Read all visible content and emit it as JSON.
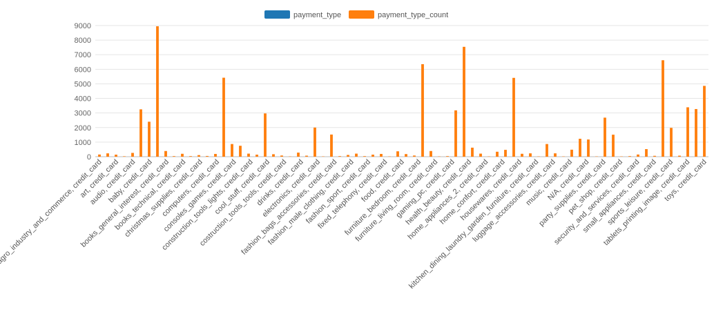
{
  "chart_data": {
    "type": "bar",
    "ylim": [
      0,
      9000
    ],
    "yticks": [
      0,
      1000,
      2000,
      3000,
      4000,
      5000,
      6000,
      7000,
      8000,
      9000
    ],
    "grid": true,
    "legend_placement": "top-center",
    "series": [
      {
        "name": "payment_type",
        "color": "#1f77b4"
      },
      {
        "name": "payment_type_count",
        "color": "#ff7f0e"
      }
    ],
    "tick_labels": [
      "agro_industry_and_commerce, credit_card",
      "art, credit_card",
      "audio, credit_card",
      "baby, credit_card",
      "books_general_interest, credit_card",
      "books_technical, credit_card",
      "christmas_supplies, credit_card",
      "computers, credit_card",
      "consoles_games, credit_card",
      "construction_tools_lights, credit_card",
      "cool_stuff, credit_card",
      "costruction_tools_tools, credit_card",
      "drinks, credit_card",
      "electronics, credit_card",
      "fashion_bags_accessories, credit_card",
      "fashion_male_clothing, credit_card",
      "fashion_sport, credit_card",
      "fixed_telephony, credit_card",
      "food, credit_card",
      "furniture_bedroom, credit_card",
      "furniture_living_room, credit_card",
      "gaming_pc, credit_card",
      "health_beauty, credit_card",
      "home_appliances_2, credit_card",
      "home_confort, credit_card",
      "housewares, credit_card",
      "kitchen_dining_laundry_garden_furniture, credit_card",
      "luggage_accessories, credit_card",
      "music, credit_card",
      "N/A, credit_card",
      "party_supplies, credit_card",
      "pet_shop, credit_card",
      "security_and_services, credit_card",
      "small_appliances, credit_card",
      "sports_leisure, credit_card",
      "tablets_printing_image, credit_card",
      "toys, credit_card"
    ],
    "values": [
      150,
      230,
      140,
      30,
      260,
      3250,
      2400,
      8950,
      390,
      40,
      200,
      40,
      110,
      50,
      190,
      5420,
      870,
      750,
      210,
      140,
      2970,
      170,
      80,
      20,
      280,
      70,
      2000,
      20,
      1520,
      40,
      120,
      210,
      40,
      140,
      190,
      20,
      370,
      180,
      80,
      6350,
      390,
      20,
      40,
      3180,
      7540,
      620,
      210,
      20,
      340,
      470,
      5410,
      200,
      230,
      20,
      870,
      230,
      20,
      480,
      1230,
      1180,
      20,
      2680,
      1510,
      20,
      40,
      150,
      520,
      60,
      6620,
      1980,
      70,
      3390,
      3270,
      4860
    ]
  }
}
